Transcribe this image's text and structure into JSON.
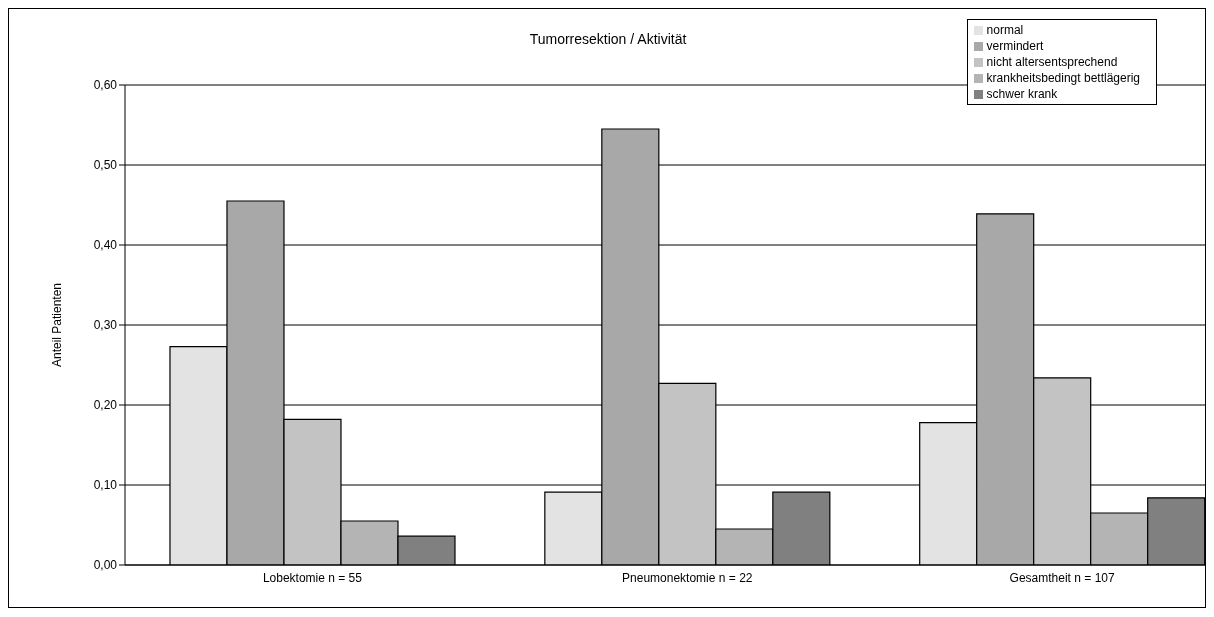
{
  "chart_data": {
    "type": "bar",
    "title": "Tumorresektion / Aktivität",
    "ylabel": "Anteil Patienten",
    "categories": [
      "Lobektomie n = 55",
      "Pneumonektomie n = 22",
      "Gesamtheit n = 107"
    ],
    "series": [
      {
        "name": "normal",
        "color": "#e3e3e3",
        "values": [
          0.273,
          0.091,
          0.178
        ]
      },
      {
        "name": "vermindert",
        "color": "#a8a8a8",
        "values": [
          0.455,
          0.545,
          0.439
        ]
      },
      {
        "name": "nicht altersentsprechend",
        "color": "#c3c3c3",
        "values": [
          0.182,
          0.227,
          0.234
        ]
      },
      {
        "name": "krankheitsbedingt bettlägerig",
        "color": "#b4b4b4",
        "values": [
          0.055,
          0.045,
          0.065
        ]
      },
      {
        "name": "schwer krank",
        "color": "#808080",
        "values": [
          0.036,
          0.091,
          0.084
        ]
      }
    ],
    "ylim": [
      0,
      0.6
    ],
    "yticks": [
      {
        "value": 0,
        "label": "0,00"
      },
      {
        "value": 0.1,
        "label": "0,10"
      },
      {
        "value": 0.2,
        "label": "0,20"
      },
      {
        "value": 0.3,
        "label": "0,30"
      },
      {
        "value": 0.4,
        "label": "0,40"
      },
      {
        "value": 0.5,
        "label": "0,50"
      },
      {
        "value": 0.6,
        "label": "0,60"
      }
    ],
    "grid": "y",
    "legend": "top right"
  }
}
